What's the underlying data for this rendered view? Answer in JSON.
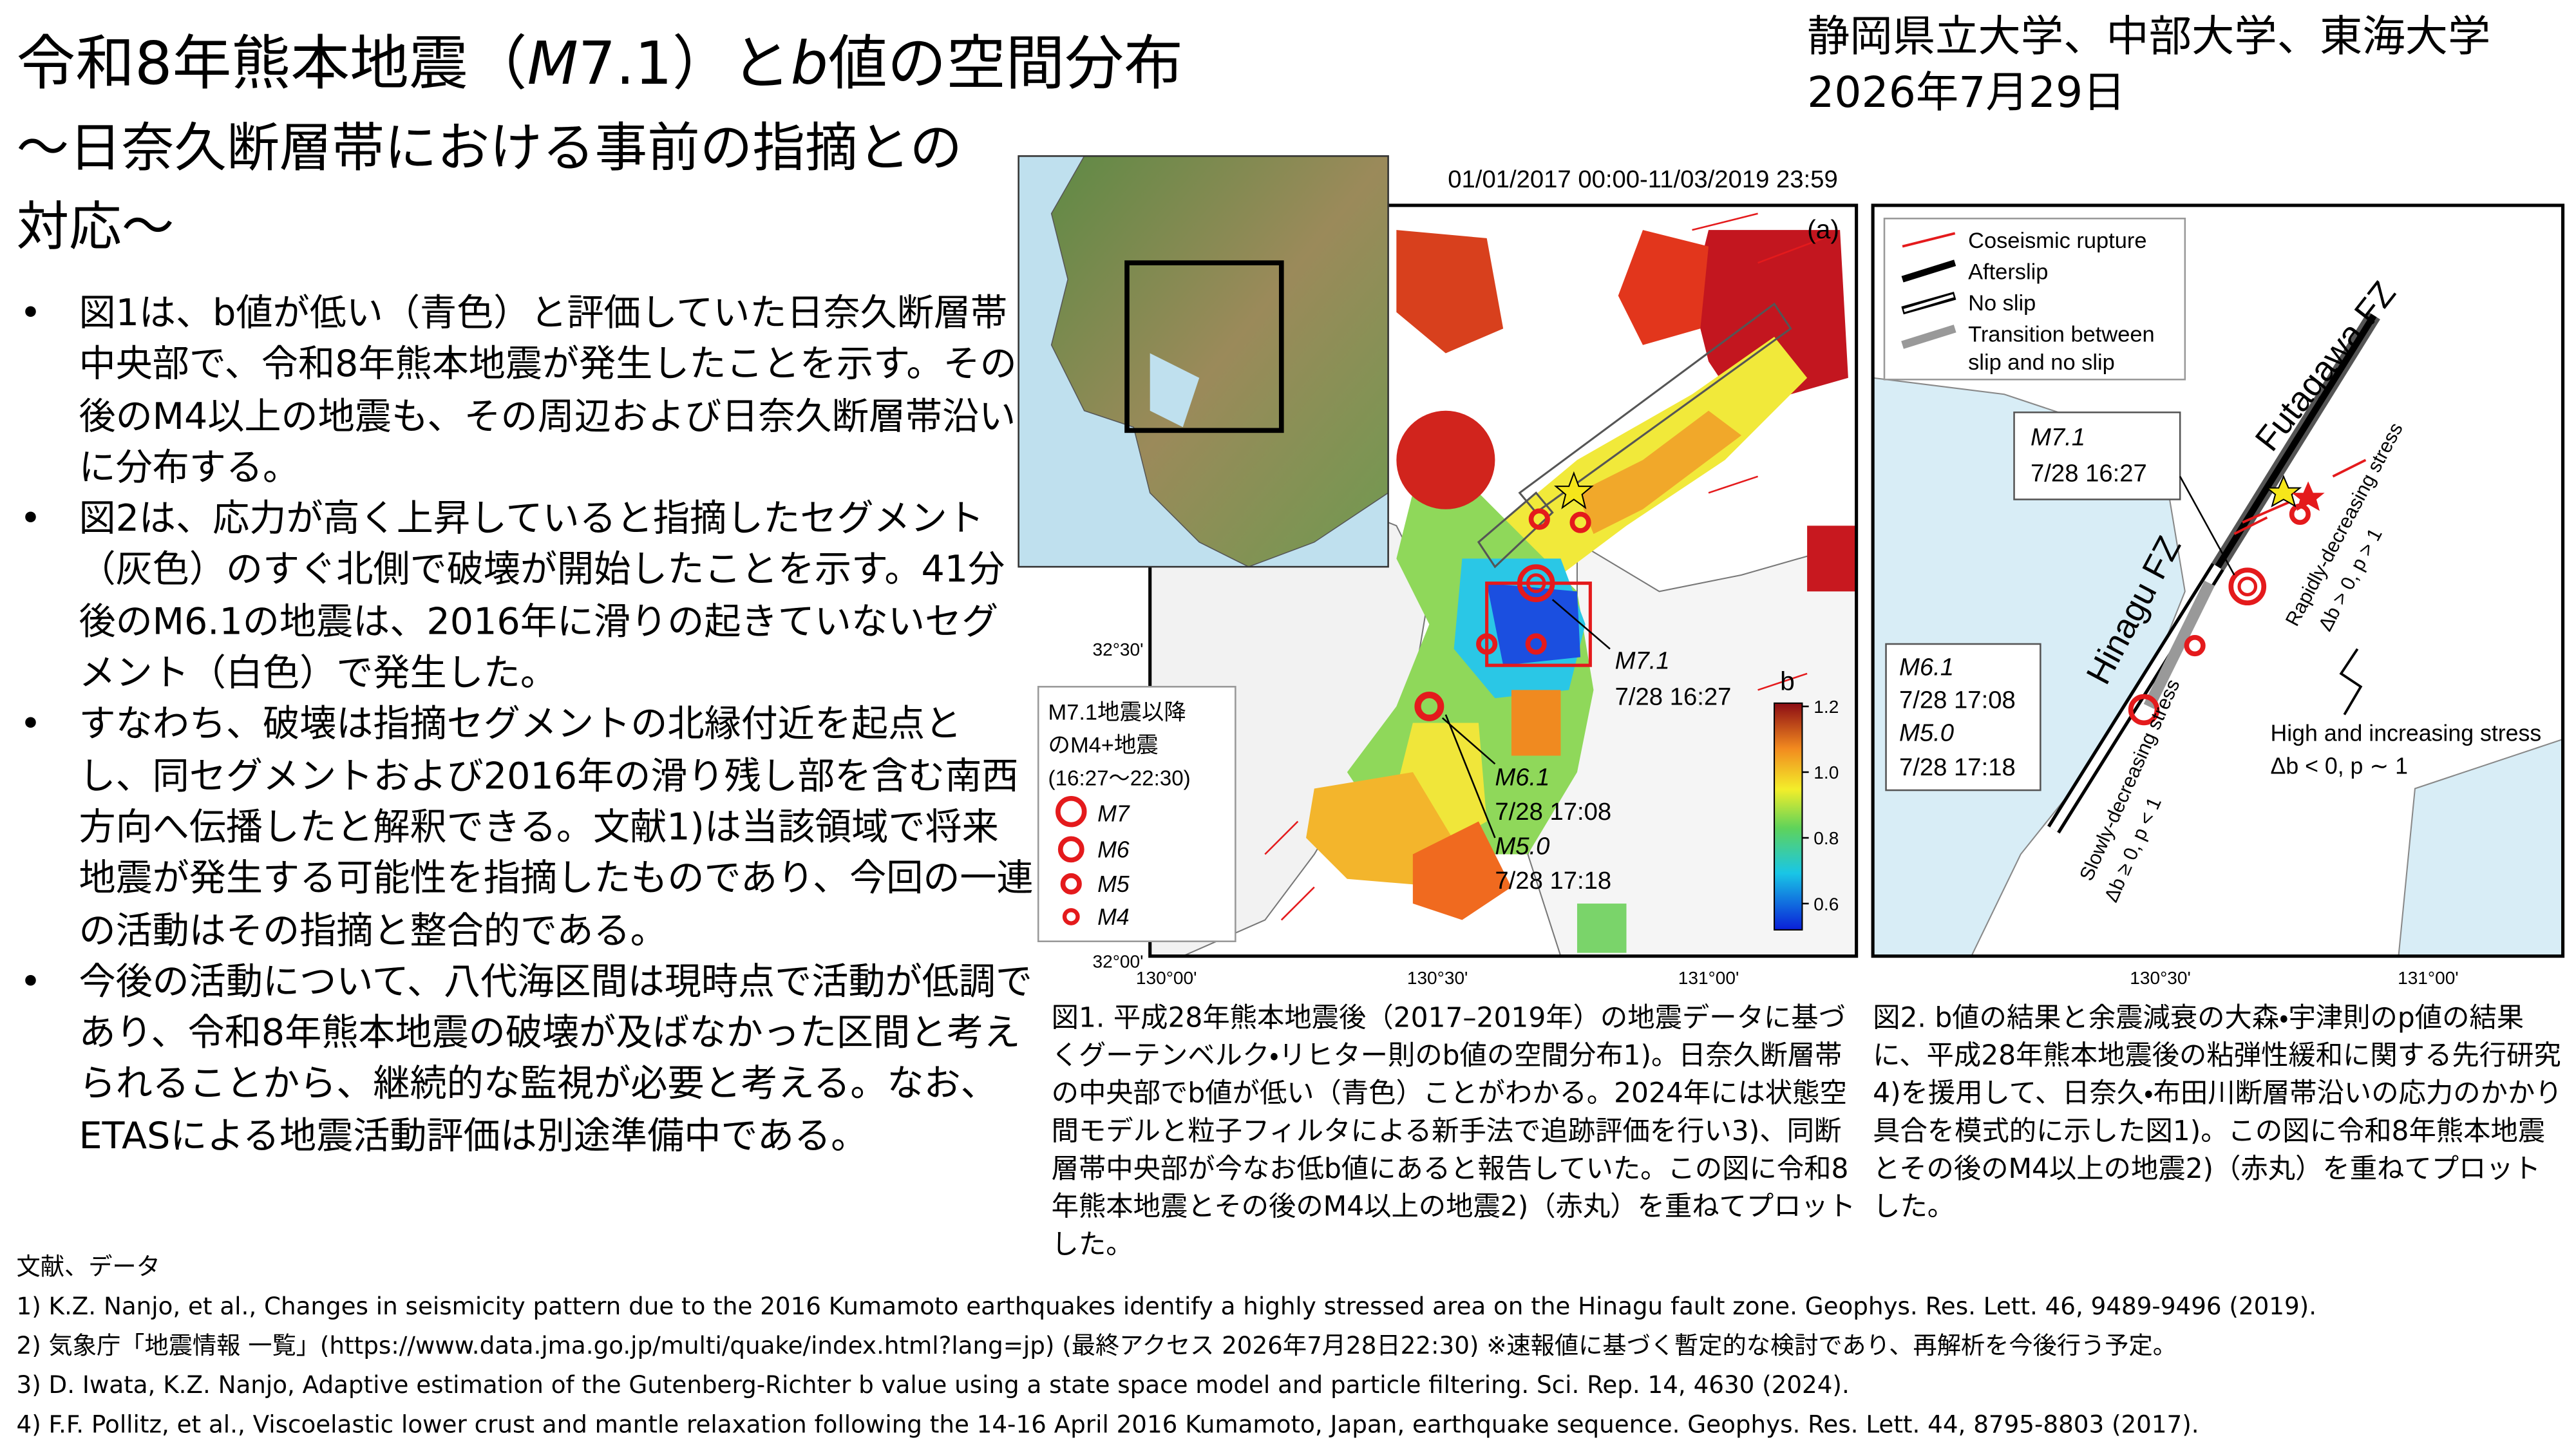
{
  "header": {
    "title": [
      "令和8年熊本地震（",
      "M",
      "7.1）と",
      "b",
      "値の空間分布"
    ],
    "subtitle": "～日奈久断層帯における事前の指摘との対応～",
    "affiliations": "静岡県立大学、中部大学、東海大学",
    "date": "2026年7月29日"
  },
  "bullets": [
    "図1は、b値が低い（青色）と評価していた日奈久断層帯中央部で、令和8年熊本地震が発生したことを示す。その後のM4以上の地震も、その周辺および日奈久断層帯沿いに分布する。",
    "図2は、応力が高く上昇していると指摘したセグメント（灰色）のすぐ北側で破壊が開始したことを示す。41分後のM6.1の地震は、2016年に滑りの起きていないセグメント（白色）で発生した。",
    "すなわち、破壊は指摘セグメントの北縁付近を起点とし、同セグメントおよび2016年の滑り残し部を含む南西方向へ伝播したと解釈できる。文献1)は当該領域で将来地震が発生する可能性を指摘したものであり、今回の一連の活動はその指摘と整合的である。",
    "今後の活動について、八代海区間は現時点で活動が低調であり、令和8年熊本地震の破壊が及ばなかった区間と考えられることから、継続的な監視が必要と考える。なお、ETASによる地震活動評価は別途準備中である。"
  ],
  "figure1": {
    "period": "01/01/2017 00:00-11/03/2019 23:59",
    "panel_label": "(a)",
    "lat_labels": [
      "32°30'",
      "32°00'"
    ],
    "lon_labels": [
      "130°00'",
      "130°30'",
      "131°00'"
    ],
    "mainshock": [
      "M7.1",
      "7/28 16:27"
    ],
    "aftershocks": [
      "M6.1",
      "7/28 17:08",
      "M5.0",
      "7/28 17:18"
    ],
    "legend": {
      "title": [
        "M7.1地震以降",
        "のM4+地震",
        "(16:27～22:30)"
      ],
      "items": [
        "M7",
        "M6",
        "M5",
        "M4"
      ]
    },
    "colorbar": {
      "label": "b",
      "range": [
        0.52,
        1.21
      ],
      "ticks": [
        1.2,
        {
          "value": 1,
          "label": "1.0"
        },
        0.8,
        0.6
      ]
    },
    "caption": "図1. 平成28年熊本地震後（2017–2019年）の地震データに基づくグーテンベルク・リヒター則のb値の空間分布1)。日奈久断層帯の中央部でb値が低い（青色）ことがわかる。2024年には状態空間モデルと粒子フィルタによる新手法で追跡評価を行い3)、同断層帯中央部が今なお低b値にあると報告していた。この図に令和8年熊本地震とその後のM4以上の地震2)（赤丸）を重ねてプロットした。"
  },
  "figure2": {
    "legend": [
      "Coseismic rupture",
      "Afterslip",
      "No slip",
      "Transition between",
      "slip and no slip"
    ],
    "fault_names": [
      "Futagawa FZ",
      "Hinagu FZ"
    ],
    "stress_labels": [
      "Rapidly-decreasing stress",
      "Δb > 0, p > 1",
      "Slowly-decreasing stress",
      "Δb ≥ 0, p < 1",
      "High and increasing stress",
      "Δb < 0, p ∼ 1"
    ],
    "mainshock": [
      "M7.1",
      "7/28 16:27"
    ],
    "aftershocks": [
      "M6.1",
      "7/28 17:08",
      "M5.0",
      "7/28 17:18"
    ],
    "lon_labels": [
      "130°30'",
      "131°00'"
    ],
    "caption": "図2. b値の結果と余震減衰の大森・宇津則のp値の結果に、平成28年熊本地震後の粘弾性緩和に関する先行研究4)を援用して、日奈久・布田川断層帯沿いの応力のかかり具合を模式的に示した図1)。この図に令和8年熊本地震とその後のM4以上の地震2)（赤丸）を重ねてプロットした。"
  },
  "references": {
    "heading": "文献、データ",
    "items": [
      "1) K.Z. Nanjo, et al., Changes in seismicity pattern due to the 2016 Kumamoto earthquakes identify a highly stressed area on the Hinagu fault zone. Geophys. Res. Lett. 46, 9489-9496 (2019).",
      "2) 気象庁「地震情報 一覧」(https://www.data.jma.go.jp/multi/quake/index.html?lang=jp) (最終アクセス 2026年7月28日22:30) ※速報値に基づく暫定的な検討であり、再解析を今後行う予定。",
      "3) D. Iwata, K.Z. Nanjo, Adaptive estimation of the Gutenberg-Richter b value using a state space model and particle filtering. Sci. Rep. 14, 4630 (2024).",
      "4) F.F. Pollitz, et al., Viscoelastic lower crust and mantle relaxation following the 14-16 April 2016 Kumamoto, Japan, earthquake sequence. Geophys. Res. Lett. 44, 8795-8803 (2017)."
    ]
  }
}
